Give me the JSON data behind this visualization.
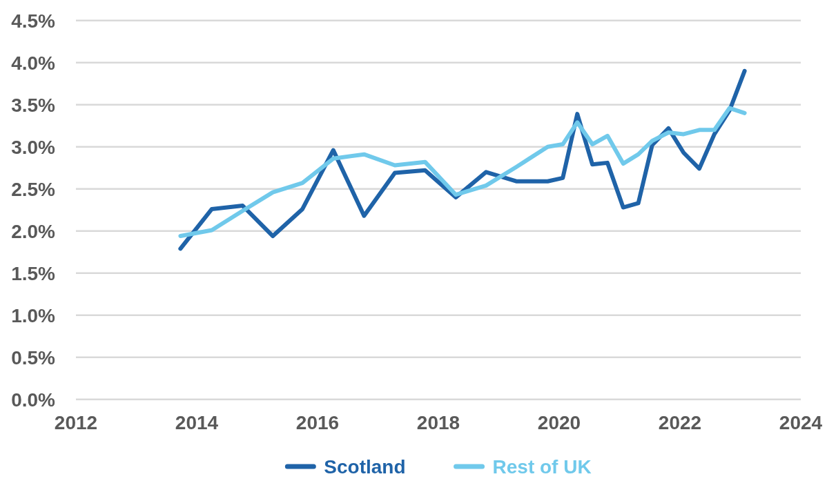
{
  "chart_data": {
    "type": "line",
    "x": [
      2013.73,
      2014.25,
      2014.76,
      2015.26,
      2015.75,
      2016.26,
      2016.77,
      2017.28,
      2017.78,
      2018.29,
      2018.79,
      2019.29,
      2019.81,
      2020.06,
      2020.3,
      2020.55,
      2020.8,
      2021.06,
      2021.31,
      2021.54,
      2021.81,
      2022.06,
      2022.32,
      2022.57,
      2022.82,
      2023.07
    ],
    "series": [
      {
        "name": "Scotland",
        "color": "#1f63a8",
        "values": [
          1.79,
          2.26,
          2.3,
          1.94,
          2.26,
          2.96,
          2.18,
          2.69,
          2.72,
          2.4,
          2.7,
          2.59,
          2.59,
          2.63,
          3.39,
          2.79,
          2.81,
          2.28,
          2.33,
          3.02,
          3.22,
          2.93,
          2.74,
          3.15,
          3.43,
          3.9
        ]
      },
      {
        "name": "Rest of UK",
        "color": "#70c9eb",
        "values": [
          1.94,
          2.01,
          2.24,
          2.46,
          2.57,
          2.86,
          2.91,
          2.78,
          2.82,
          2.43,
          2.54,
          2.76,
          3.0,
          3.03,
          3.29,
          3.03,
          3.13,
          2.8,
          2.91,
          3.07,
          3.17,
          3.15,
          3.2,
          3.2,
          3.46,
          3.4
        ]
      }
    ],
    "xlim": [
      2012,
      2024
    ],
    "xticks": [
      2012,
      2014,
      2016,
      2018,
      2020,
      2022,
      2024
    ],
    "ylim": [
      0,
      4.5
    ],
    "yticks": [
      {
        "value": 0,
        "label": "0.0%"
      },
      {
        "value": 0.5,
        "label": "0.5%"
      },
      {
        "value": 1,
        "label": "1.0%"
      },
      {
        "value": 1.5,
        "label": "1.5%"
      },
      {
        "value": 2,
        "label": "2.0%"
      },
      {
        "value": 2.5,
        "label": "2.5%"
      },
      {
        "value": 3,
        "label": "3.0%"
      },
      {
        "value": 3.5,
        "label": "3.5%"
      },
      {
        "value": 4,
        "label": "4.0%"
      },
      {
        "value": 4.5,
        "label": "4.5%"
      }
    ],
    "grid": "y",
    "legend": "bottom",
    "line_style": "solid"
  }
}
